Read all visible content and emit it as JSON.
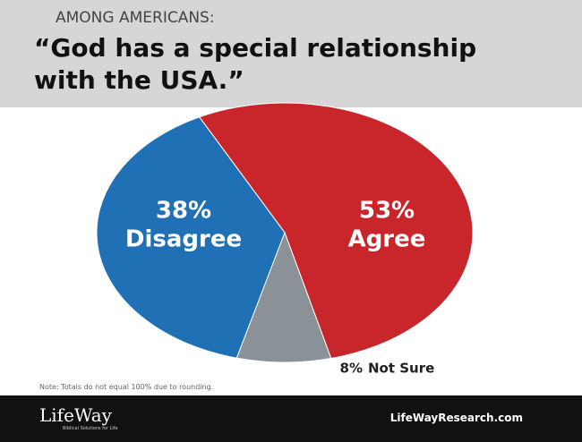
{
  "chart_data": {
    "type": "pie",
    "subtitle": "AMONG AMERICANS:",
    "title": "“God has a special relationship with the USA.”",
    "categories": [
      "Agree",
      "Not Sure",
      "Disagree"
    ],
    "values": [
      53,
      8,
      38
    ],
    "value_labels": [
      "53%",
      "8%",
      "38%"
    ],
    "colors": [
      "#c9262b",
      "#8a9197",
      "#1f70b5"
    ],
    "note": "Note: Totals do not equal 100% due to rounding."
  },
  "footer": {
    "logo": "LifeWay",
    "tagline": "Biblical Solutions for Life",
    "url": "LifeWayResearch.com"
  }
}
